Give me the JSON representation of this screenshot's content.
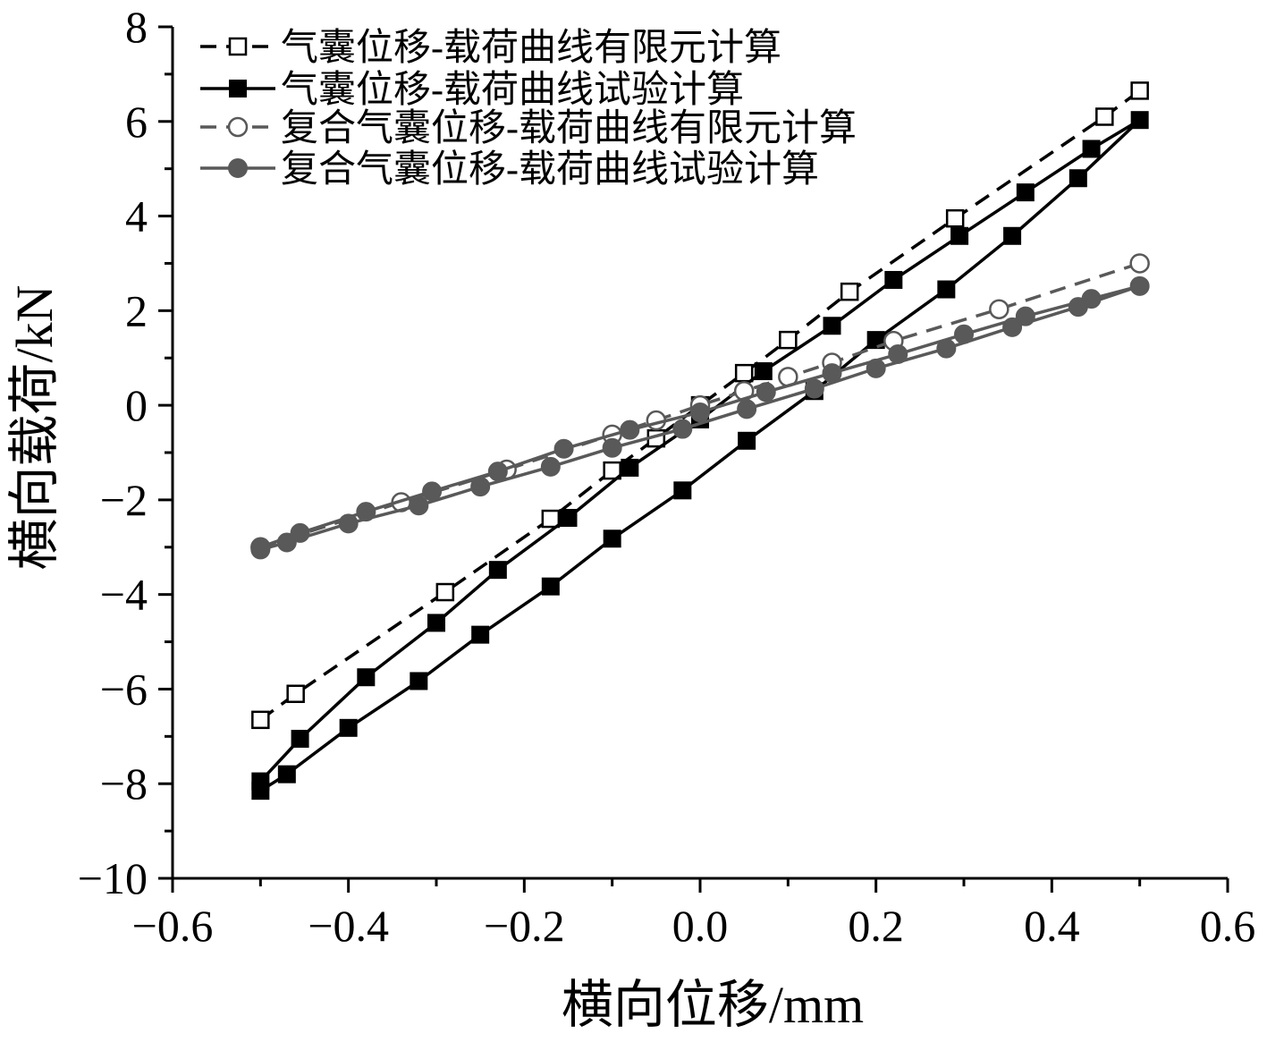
{
  "chart_data": {
    "type": "line",
    "xlabel": "横向位移/mm",
    "ylabel": "横向载荷/kN",
    "xlim": [
      -0.6,
      0.6
    ],
    "ylim": [
      -10,
      8
    ],
    "xticks": [
      -0.6,
      -0.4,
      -0.2,
      0.0,
      0.2,
      0.4,
      0.6
    ],
    "xtick_labels": [
      "−0.6",
      "−0.4",
      "−0.2",
      "0.0",
      "0.2",
      "0.4",
      "0.6"
    ],
    "yticks": [
      -10,
      -8,
      -6,
      -4,
      -2,
      0,
      2,
      4,
      6,
      8
    ],
    "ytick_labels": [
      "−10",
      "−8",
      "−6",
      "−4",
      "−2",
      "0",
      "2",
      "4",
      "6",
      "8"
    ],
    "grid": false,
    "legend_position": "top-left",
    "series": [
      {
        "name": "气囊位移-载荷曲线有限元计算",
        "color": "#000000",
        "line": "dashed",
        "marker": "square-open",
        "points": [
          [
            -0.5,
            -6.65
          ],
          [
            -0.46,
            -6.1
          ],
          [
            -0.29,
            -3.95
          ],
          [
            -0.17,
            -2.4
          ],
          [
            -0.1,
            -1.38
          ],
          [
            -0.05,
            -0.7
          ],
          [
            0.0,
            0.0
          ],
          [
            0.05,
            0.68
          ],
          [
            0.1,
            1.38
          ],
          [
            0.17,
            2.4
          ],
          [
            0.29,
            3.95
          ],
          [
            0.46,
            6.1
          ],
          [
            0.5,
            6.65
          ]
        ]
      },
      {
        "name": "气囊位移-载荷曲线试验计算",
        "color": "#000000",
        "line": "solid",
        "marker": "square-filled",
        "points": [
          [
            -0.5,
            -8.15
          ],
          [
            -0.47,
            -7.8
          ],
          [
            -0.4,
            -6.82
          ],
          [
            -0.32,
            -5.83
          ],
          [
            -0.25,
            -4.85
          ],
          [
            -0.17,
            -3.83
          ],
          [
            -0.1,
            -2.82
          ],
          [
            -0.02,
            -1.8
          ],
          [
            0.053,
            -0.75
          ],
          [
            0.13,
            0.3
          ],
          [
            0.2,
            1.38
          ],
          [
            0.28,
            2.45
          ],
          [
            0.355,
            3.58
          ],
          [
            0.43,
            4.8
          ],
          [
            0.5,
            6.03
          ],
          [
            0.445,
            5.42
          ],
          [
            0.37,
            4.5
          ],
          [
            0.295,
            3.58
          ],
          [
            0.22,
            2.65
          ],
          [
            0.15,
            1.68
          ],
          [
            0.072,
            0.72
          ],
          [
            0.0,
            -0.3
          ],
          [
            -0.08,
            -1.32
          ],
          [
            -0.15,
            -2.38
          ],
          [
            -0.23,
            -3.48
          ],
          [
            -0.3,
            -4.6
          ],
          [
            -0.38,
            -5.75
          ],
          [
            -0.455,
            -7.05
          ],
          [
            -0.5,
            -7.95
          ]
        ]
      },
      {
        "name": "复合气囊位移-载荷曲线有限元计算",
        "color": "#595959",
        "line": "dashed",
        "marker": "circle-open",
        "points": [
          [
            -0.5,
            -3.0
          ],
          [
            -0.34,
            -2.05
          ],
          [
            -0.22,
            -1.36
          ],
          [
            -0.1,
            -0.62
          ],
          [
            -0.05,
            -0.32
          ],
          [
            0.0,
            0.0
          ],
          [
            0.05,
            0.3
          ],
          [
            0.1,
            0.6
          ],
          [
            0.15,
            0.9
          ],
          [
            0.22,
            1.36
          ],
          [
            0.34,
            2.03
          ],
          [
            0.5,
            3.0
          ]
        ]
      },
      {
        "name": "复合气囊位移-载荷曲线试验计算",
        "color": "#595959",
        "line": "solid",
        "marker": "circle-filled",
        "points": [
          [
            -0.5,
            -3.05
          ],
          [
            -0.47,
            -2.9
          ],
          [
            -0.4,
            -2.5
          ],
          [
            -0.32,
            -2.12
          ],
          [
            -0.25,
            -1.72
          ],
          [
            -0.17,
            -1.3
          ],
          [
            -0.1,
            -0.9
          ],
          [
            -0.02,
            -0.5
          ],
          [
            0.053,
            -0.08
          ],
          [
            0.13,
            0.35
          ],
          [
            0.2,
            0.78
          ],
          [
            0.28,
            1.2
          ],
          [
            0.355,
            1.65
          ],
          [
            0.43,
            2.08
          ],
          [
            0.5,
            2.52
          ],
          [
            0.445,
            2.25
          ],
          [
            0.37,
            1.88
          ],
          [
            0.3,
            1.5
          ],
          [
            0.225,
            1.08
          ],
          [
            0.15,
            0.68
          ],
          [
            0.075,
            0.28
          ],
          [
            0.0,
            -0.15
          ],
          [
            -0.08,
            -0.52
          ],
          [
            -0.155,
            -0.92
          ],
          [
            -0.23,
            -1.4
          ],
          [
            -0.305,
            -1.82
          ],
          [
            -0.38,
            -2.25
          ],
          [
            -0.455,
            -2.7
          ],
          [
            -0.5,
            -3.0
          ]
        ]
      }
    ]
  }
}
